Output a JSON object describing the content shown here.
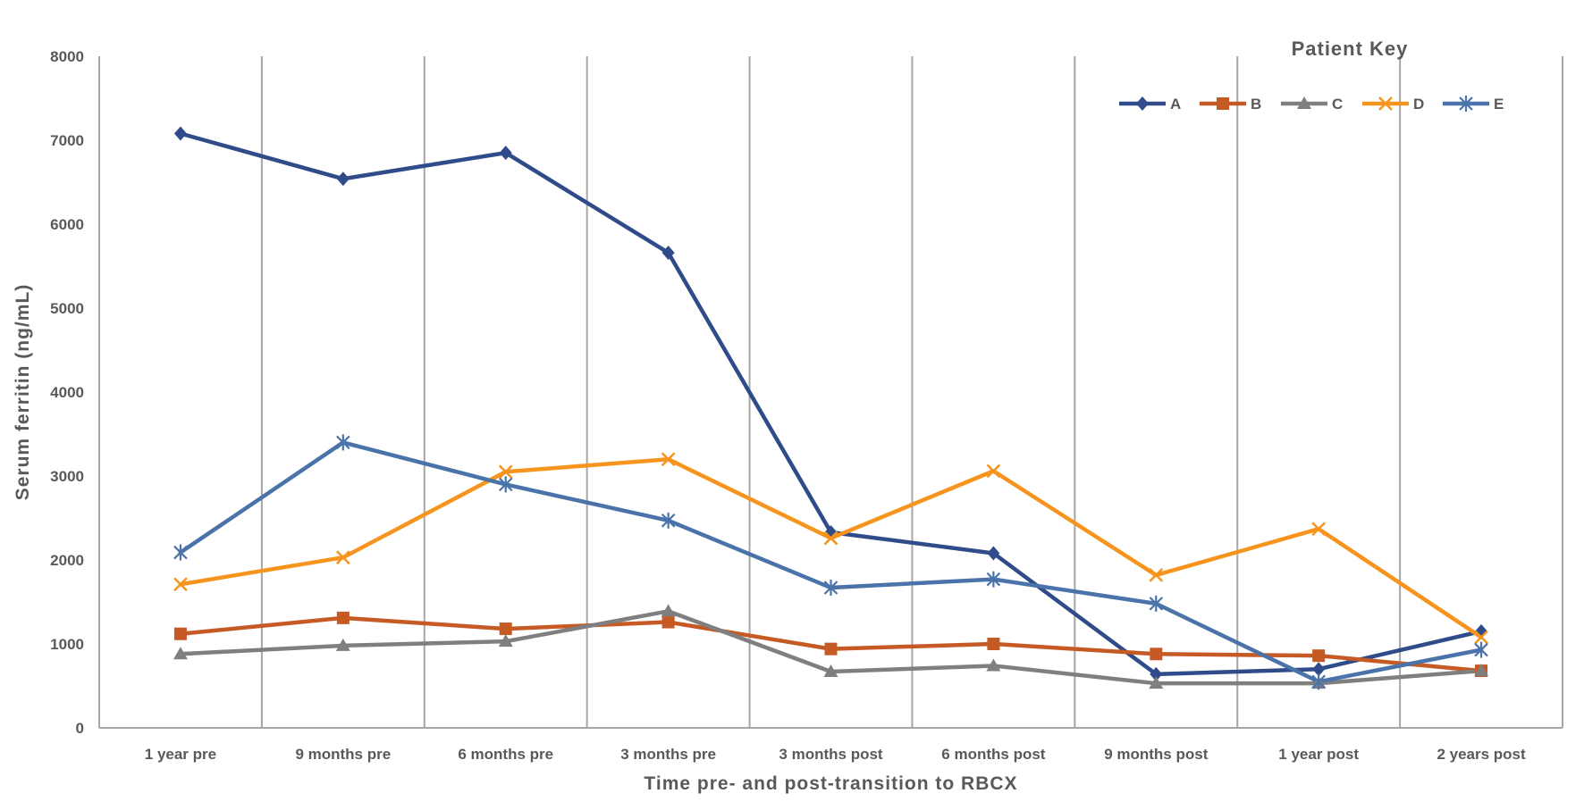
{
  "chart_data": {
    "type": "line",
    "title": "",
    "xlabel": "Time pre- and post-transition to RBCX",
    "ylabel": "Serum ferritin (ng/mL)",
    "ylim": [
      0,
      8000
    ],
    "yticks": [
      "0",
      "1000",
      "2000",
      "3000",
      "4000",
      "5000",
      "6000",
      "7000",
      "8000"
    ],
    "categories": [
      "1 year pre",
      "9 months pre",
      "6 months pre",
      "3 months pre",
      "3 months post",
      "6 months post",
      "9 months post",
      "1 year post",
      "2 years post"
    ],
    "grid": "vertical separators between categories",
    "legend": {
      "title": "Patient Key",
      "placement": "top-right"
    },
    "series": [
      {
        "name": "A",
        "color": "#2F4B8A",
        "marker": "diamond",
        "values": [
          7080,
          6540,
          6850,
          5660,
          2330,
          2080,
          640,
          700,
          1150
        ]
      },
      {
        "name": "B",
        "color": "#C65A25",
        "marker": "square",
        "values": [
          1120,
          1310,
          1180,
          1260,
          940,
          1000,
          880,
          860,
          680
        ]
      },
      {
        "name": "C",
        "color": "#7F7F7F",
        "marker": "triangle",
        "values": [
          880,
          980,
          1030,
          1390,
          670,
          740,
          530,
          530,
          680
        ]
      },
      {
        "name": "D",
        "color": "#F7941D",
        "marker": "x",
        "values": [
          1710,
          2030,
          3050,
          3200,
          2260,
          3060,
          1820,
          2370,
          1080
        ]
      },
      {
        "name": "E",
        "color": "#4A73AA",
        "marker": "asterisk",
        "values": [
          2090,
          3400,
          2900,
          2470,
          1670,
          1770,
          1480,
          550,
          930
        ]
      }
    ]
  }
}
